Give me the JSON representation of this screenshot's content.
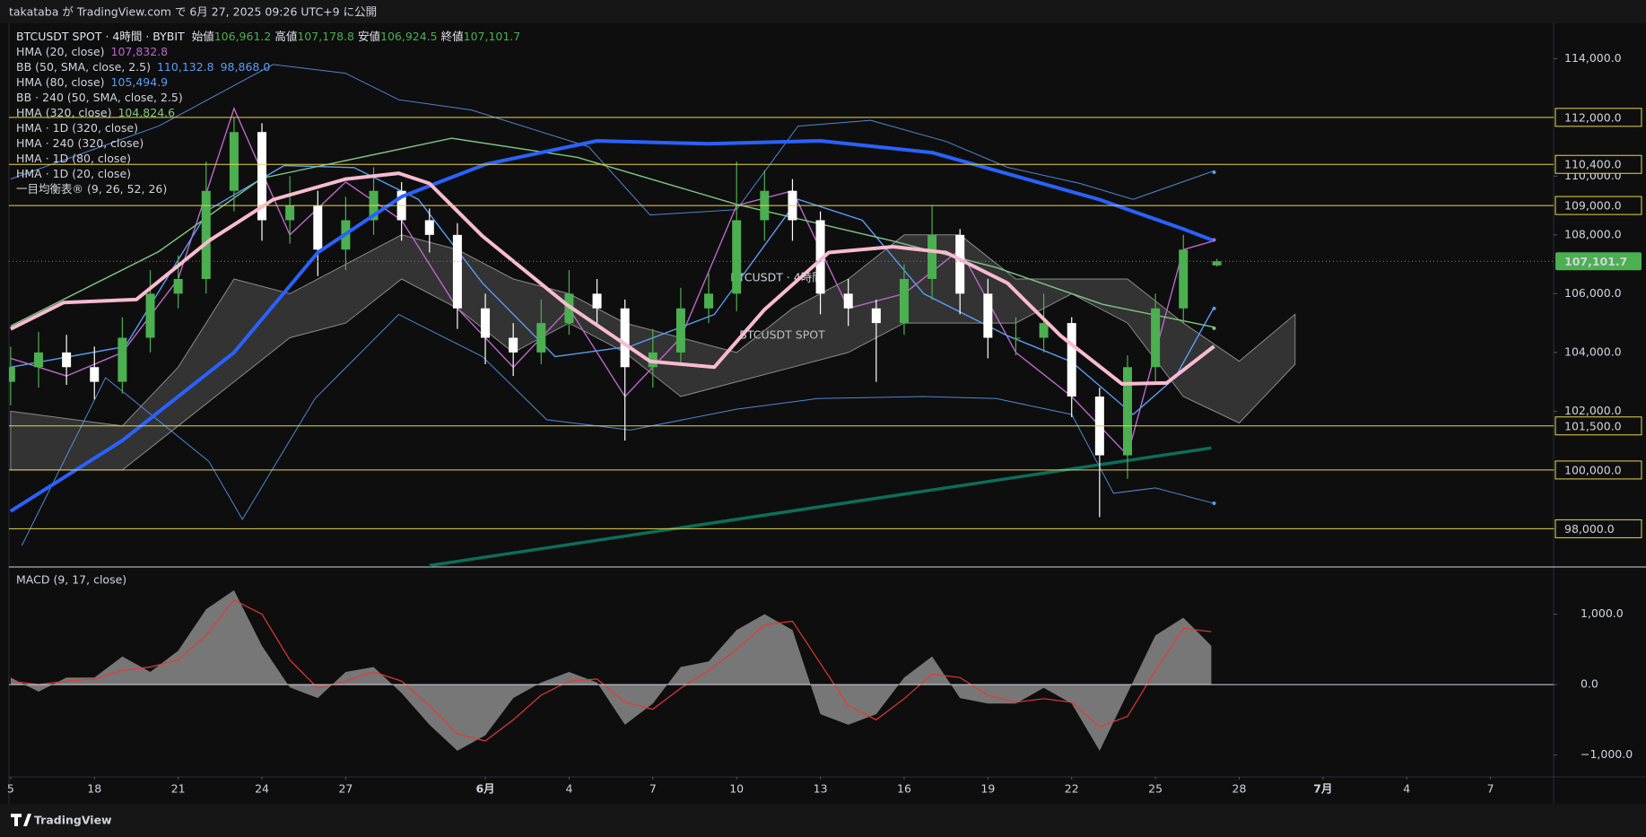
{
  "publish_bar": "takataba が TradingView.com で 6月 27, 2025 09:26 UTC+9 に公開",
  "brand": "TradingView",
  "chart_data": [
    {
      "type": "candlestick",
      "symbol": "BTCUSDT SPOT · 4時間 · BYBIT",
      "watermark": "BTCUSDT · 4時間",
      "watermark_sub": "BTCUSDT SPOT",
      "up_color": "#4caf50",
      "down_color": "#ffffff",
      "ohlc_header": {
        "x": 43.2,
        "items": [
          {
            "name": "始値",
            "value": 106961.2,
            "label": "106,961.2"
          },
          {
            "name": "高値",
            "value": 107178.8,
            "label": "107,178.8"
          },
          {
            "name": "安値",
            "value": 106924.5,
            "label": "106,924.5"
          },
          {
            "name": "終値",
            "value": 107101.7,
            "label": "107,101.7"
          }
        ]
      },
      "x": [
        0,
        1,
        2,
        3,
        4,
        5,
        6,
        7,
        8,
        9,
        10,
        11,
        12,
        13,
        14,
        15,
        16,
        17,
        18,
        19,
        20,
        21,
        22,
        23,
        24,
        25,
        26,
        27,
        28,
        29,
        30,
        31,
        32,
        33,
        34,
        35,
        36,
        37,
        38,
        39,
        40,
        41,
        42
      ],
      "open": [
        103000,
        103500,
        104000,
        103500,
        103000,
        104500,
        106000,
        106500,
        109500,
        111500,
        108500,
        109000,
        107500,
        108500,
        109500,
        108500,
        108000,
        105500,
        104500,
        104000,
        105000,
        106000,
        105500,
        103500,
        104000,
        105500,
        106000,
        108500,
        109500,
        108500,
        106000,
        105500,
        105000,
        106500,
        108000,
        106000,
        104500,
        104500,
        105000,
        102500,
        100500,
        103500,
        105500
      ],
      "high": [
        104200,
        104700,
        104600,
        104200,
        105200,
        106800,
        107300,
        110500,
        112000,
        111800,
        110000,
        109500,
        109300,
        110300,
        109800,
        108900,
        108400,
        106000,
        105000,
        105800,
        106800,
        106500,
        105800,
        104800,
        106200,
        106700,
        110500,
        110200,
        109900,
        108800,
        106500,
        105800,
        107000,
        109000,
        108200,
        106500,
        105200,
        106000,
        105200,
        102800,
        103900,
        106000,
        108000
      ],
      "low": [
        102200,
        102800,
        102900,
        102400,
        102600,
        104000,
        105500,
        106000,
        108800,
        107800,
        107700,
        106600,
        106800,
        108000,
        107800,
        107400,
        104800,
        103600,
        103200,
        103600,
        104600,
        104900,
        101000,
        102800,
        103600,
        105000,
        105400,
        107800,
        107800,
        105300,
        104900,
        103000,
        104600,
        105800,
        105300,
        103800,
        103900,
        104000,
        101800,
        98400,
        99700,
        103000,
        105000
      ],
      "close": [
        103500,
        104000,
        103500,
        103000,
        104500,
        106000,
        106500,
        109500,
        111500,
        108500,
        109000,
        107500,
        108500,
        109500,
        108500,
        108000,
        105500,
        104500,
        104000,
        105000,
        106000,
        105500,
        103500,
        104000,
        105500,
        106000,
        108500,
        109500,
        108500,
        106000,
        105500,
        105000,
        106500,
        108000,
        106000,
        104500,
        104500,
        105000,
        102500,
        100500,
        103500,
        105500,
        107500
      ],
      "series": [
        {
          "name": "HMA (20, close)",
          "color": "#ba68c8",
          "width": 1.4,
          "x": [
            0,
            2,
            4,
            6,
            8,
            10,
            12,
            14,
            16,
            18,
            20,
            22,
            24,
            26,
            28,
            30,
            32,
            34,
            36,
            38,
            40,
            42,
            43.1
          ],
          "values": [
            103800,
            103200,
            104000,
            106500,
            112300,
            108000,
            109800,
            108500,
            105500,
            103500,
            105500,
            102500,
            104500,
            109000,
            109500,
            105500,
            106000,
            107500,
            104000,
            102500,
            100500,
            107500,
            107800
          ],
          "last": {
            "value": 107832.8,
            "label": "107,832.8"
          }
        },
        {
          "name": "BB (50, SMA, close, 2.5)",
          "color": "#5b9cf6",
          "width": 1,
          "bands": [
            {
              "x": [
                0,
                5.3,
                9.4,
                12,
                13.9,
                16.5,
                20.7,
                22.9,
                26,
                28.2,
                30.8,
                33.5,
                35.7,
                38.3,
                40.2,
                43.1
              ],
              "values": [
                109900,
                111700,
                113800,
                113500,
                112600,
                112250,
                111000,
                108680,
                108860,
                111700,
                111900,
                111180,
                110300,
                109750,
                109210,
                110180
              ]
            },
            {
              "x": [
                0.4,
                3.4,
                7.1,
                8.3,
                10.9,
                13.9,
                16.9,
                19.2,
                22.2,
                26,
                28.9,
                32.7,
                35.3,
                38,
                39.5,
                41,
                43.1
              ],
              "values": [
                97430,
                103140,
                100290,
                98320,
                102430,
                105290,
                103860,
                101710,
                101360,
                102070,
                102430,
                102500,
                102430,
                101890,
                99210,
                99390,
                98860
              ]
            }
          ],
          "last": [
            {
              "value": 110132.8,
              "label": "110,132.8"
            },
            {
              "value": 98868.0,
              "label": "98,868.0"
            }
          ]
        },
        {
          "name": "HMA (80, close)",
          "color": "#5b9cf6",
          "width": 1.4,
          "x": [
            0,
            4.1,
            7.1,
            9.8,
            12.3,
            14.6,
            16.9,
            19.5,
            22.2,
            25.2,
            28.2,
            30.5,
            32.7,
            35.7,
            38,
            40.2,
            41.7,
            43.1
          ],
          "values": [
            103500,
            104200,
            108860,
            110360,
            110290,
            109210,
            106360,
            103860,
            104210,
            105290,
            109210,
            108500,
            106000,
            104570,
            103680,
            101890,
            103140,
            105540
          ],
          "last": {
            "value": 105494.9,
            "label": "105,494.9"
          }
        },
        {
          "name": "BB · 240 (50, SMA, close, 2.5)"
        },
        {
          "name": "HMA (320, close)",
          "color": "#81c784",
          "width": 1.4,
          "x": [
            0,
            5.3,
            9,
            15.8,
            20.3,
            26,
            31.6,
            35.3,
            39.1,
            43.1
          ],
          "values": [
            104900,
            107430,
            109930,
            111290,
            110640,
            109040,
            107790,
            106890,
            105640,
            104860
          ],
          "last": {
            "value": 104824.6,
            "label": "104,824.6"
          }
        },
        {
          "name": "HMA · 1D (320, close)",
          "color": "#2962ff",
          "width": 4,
          "x": [
            0,
            4,
            8,
            11,
            14,
            17,
            21,
            25,
            29,
            33,
            36,
            39,
            42,
            43.1
          ],
          "values": [
            98600,
            101000,
            104000,
            107400,
            109300,
            110400,
            111200,
            111100,
            111200,
            110800,
            110000,
            109200,
            108200,
            107800
          ]
        },
        {
          "name": "HMA · 240 (320, close)"
        },
        {
          "name": "HMA · 1D (80, close)"
        },
        {
          "name": "HMA · 1D (20, close)",
          "color": "#f8bbd0",
          "width": 4,
          "x": [
            0,
            1.9,
            4.5,
            7.1,
            9.4,
            12,
            13.9,
            15,
            16.9,
            19.9,
            22.9,
            25.2,
            27,
            29.3,
            31.6,
            33.5,
            35.7,
            37.6,
            39.8,
            41.4,
            43.1
          ],
          "values": [
            104800,
            105700,
            105800,
            107800,
            109200,
            109900,
            110100,
            109750,
            107960,
            105640,
            103700,
            103500,
            105460,
            107400,
            107600,
            107400,
            106360,
            104570,
            102930,
            102960,
            104210
          ]
        },
        {
          "name": "一目均衡表® (9, 26, 52, 26)",
          "color": "#8a8a8a",
          "x": [
            0,
            4,
            6,
            8,
            10,
            12,
            14,
            16,
            18,
            20,
            22,
            24,
            26,
            28,
            30,
            32,
            34,
            36,
            38,
            40,
            42,
            44,
            46
          ],
          "upper": [
            102000,
            101500,
            103500,
            106500,
            106000,
            107000,
            108000,
            107500,
            106500,
            106000,
            105000,
            104500,
            104000,
            105500,
            106500,
            108000,
            108000,
            106500,
            106500,
            106500,
            105000,
            103700,
            105300
          ],
          "lower": [
            100000,
            100000,
            101500,
            103000,
            104500,
            105000,
            106500,
            105500,
            104000,
            105000,
            104000,
            102500,
            103000,
            103500,
            104000,
            105000,
            105000,
            105000,
            106000,
            105000,
            102500,
            101600,
            103600
          ]
        }
      ],
      "trendline": {
        "color": "#0b6e5a",
        "x": [
          15,
          43
        ],
        "values": [
          96750,
          100750
        ]
      },
      "level_color": "#e8d44d",
      "levels": [
        {
          "value": 112000,
          "label": "112,000.0"
        },
        {
          "value": 110400,
          "label": "110,400.0"
        },
        {
          "value": 109000,
          "label": "109,000.0"
        },
        {
          "value": 101500,
          "label": "101,500.0"
        },
        {
          "value": 100000,
          "label": "100,000.0"
        },
        {
          "value": 98000,
          "label": "98,000.0"
        }
      ],
      "ylim": [
        96700,
        115200
      ],
      "yticks": [
        {
          "value": 98000,
          "label": "98,000.0"
        },
        {
          "value": 100000,
          "label": "100,000.0"
        },
        {
          "value": 102000,
          "label": "102,000.0"
        },
        {
          "value": 104000,
          "label": "104,000.0"
        },
        {
          "value": 106000,
          "label": "106,000.0"
        },
        {
          "value": 108000,
          "label": "108,000.0"
        },
        {
          "value": 110000,
          "label": "110,000.0"
        },
        {
          "value": 112000,
          "label": "112,000.0"
        },
        {
          "value": 114000,
          "label": "114,000.0"
        }
      ],
      "grid": false
    },
    {
      "type": "area",
      "title": "MACD (9, 17, close)",
      "x": [
        0,
        1,
        2,
        3,
        4,
        5,
        6,
        7,
        8,
        9,
        10,
        11,
        12,
        13,
        14,
        15,
        16,
        17,
        18,
        19,
        20,
        21,
        22,
        23,
        24,
        25,
        26,
        27,
        28,
        29,
        30,
        31,
        32,
        33,
        34,
        35,
        36,
        37,
        38,
        39,
        40,
        41,
        42,
        43
      ],
      "series": [
        {
          "color": "#8a8a8a",
          "values": [
            100,
            -100,
            100,
            100,
            400,
            180,
            480,
            1070,
            1340,
            550,
            -40,
            -190,
            180,
            250,
            -120,
            -570,
            -940,
            -720,
            -190,
            30,
            180,
            30,
            -570,
            -270,
            250,
            330,
            775,
            1000,
            775,
            -420,
            -570,
            -420,
            100,
            400,
            -190,
            -270,
            -270,
            -45,
            -270,
            -940,
            -120,
            700,
            950,
            550
          ]
        },
        {
          "color": "#e53935",
          "values": [
            50,
            0,
            50,
            80,
            200,
            250,
            350,
            700,
            1200,
            1000,
            350,
            -50,
            50,
            180,
            50,
            -300,
            -700,
            -800,
            -500,
            -150,
            50,
            80,
            -250,
            -350,
            -50,
            200,
            500,
            850,
            900,
            300,
            -300,
            -500,
            -200,
            150,
            100,
            -150,
            -250,
            -200,
            -250,
            -600,
            -450,
            200,
            800,
            750
          ]
        }
      ],
      "ylim": [
        -1310,
        1670
      ],
      "yticks": [
        {
          "value": 1000,
          "label": "1,000.0"
        },
        {
          "value": 0,
          "label": "0.0"
        },
        {
          "value": -1000,
          "label": "−1,000.0"
        }
      ],
      "xlim": [
        -0.06,
        55.26
      ],
      "xticks": [
        {
          "value": 0,
          "label": "5"
        },
        {
          "value": 3,
          "label": "18"
        },
        {
          "value": 6,
          "label": "21"
        },
        {
          "value": 9,
          "label": "24"
        },
        {
          "value": 12,
          "label": "27"
        },
        {
          "value": 17,
          "label": "6月"
        },
        {
          "value": 20,
          "label": "4"
        },
        {
          "value": 23,
          "label": "7"
        },
        {
          "value": 26,
          "label": "10"
        },
        {
          "value": 29,
          "label": "13"
        },
        {
          "value": 32,
          "label": "16"
        },
        {
          "value": 35,
          "label": "19"
        },
        {
          "value": 38,
          "label": "22"
        },
        {
          "value": 41,
          "label": "25"
        },
        {
          "value": 44,
          "label": "28"
        },
        {
          "value": 47,
          "label": "7月"
        },
        {
          "value": 50,
          "label": "4"
        },
        {
          "value": 53,
          "label": "7"
        }
      ]
    }
  ]
}
